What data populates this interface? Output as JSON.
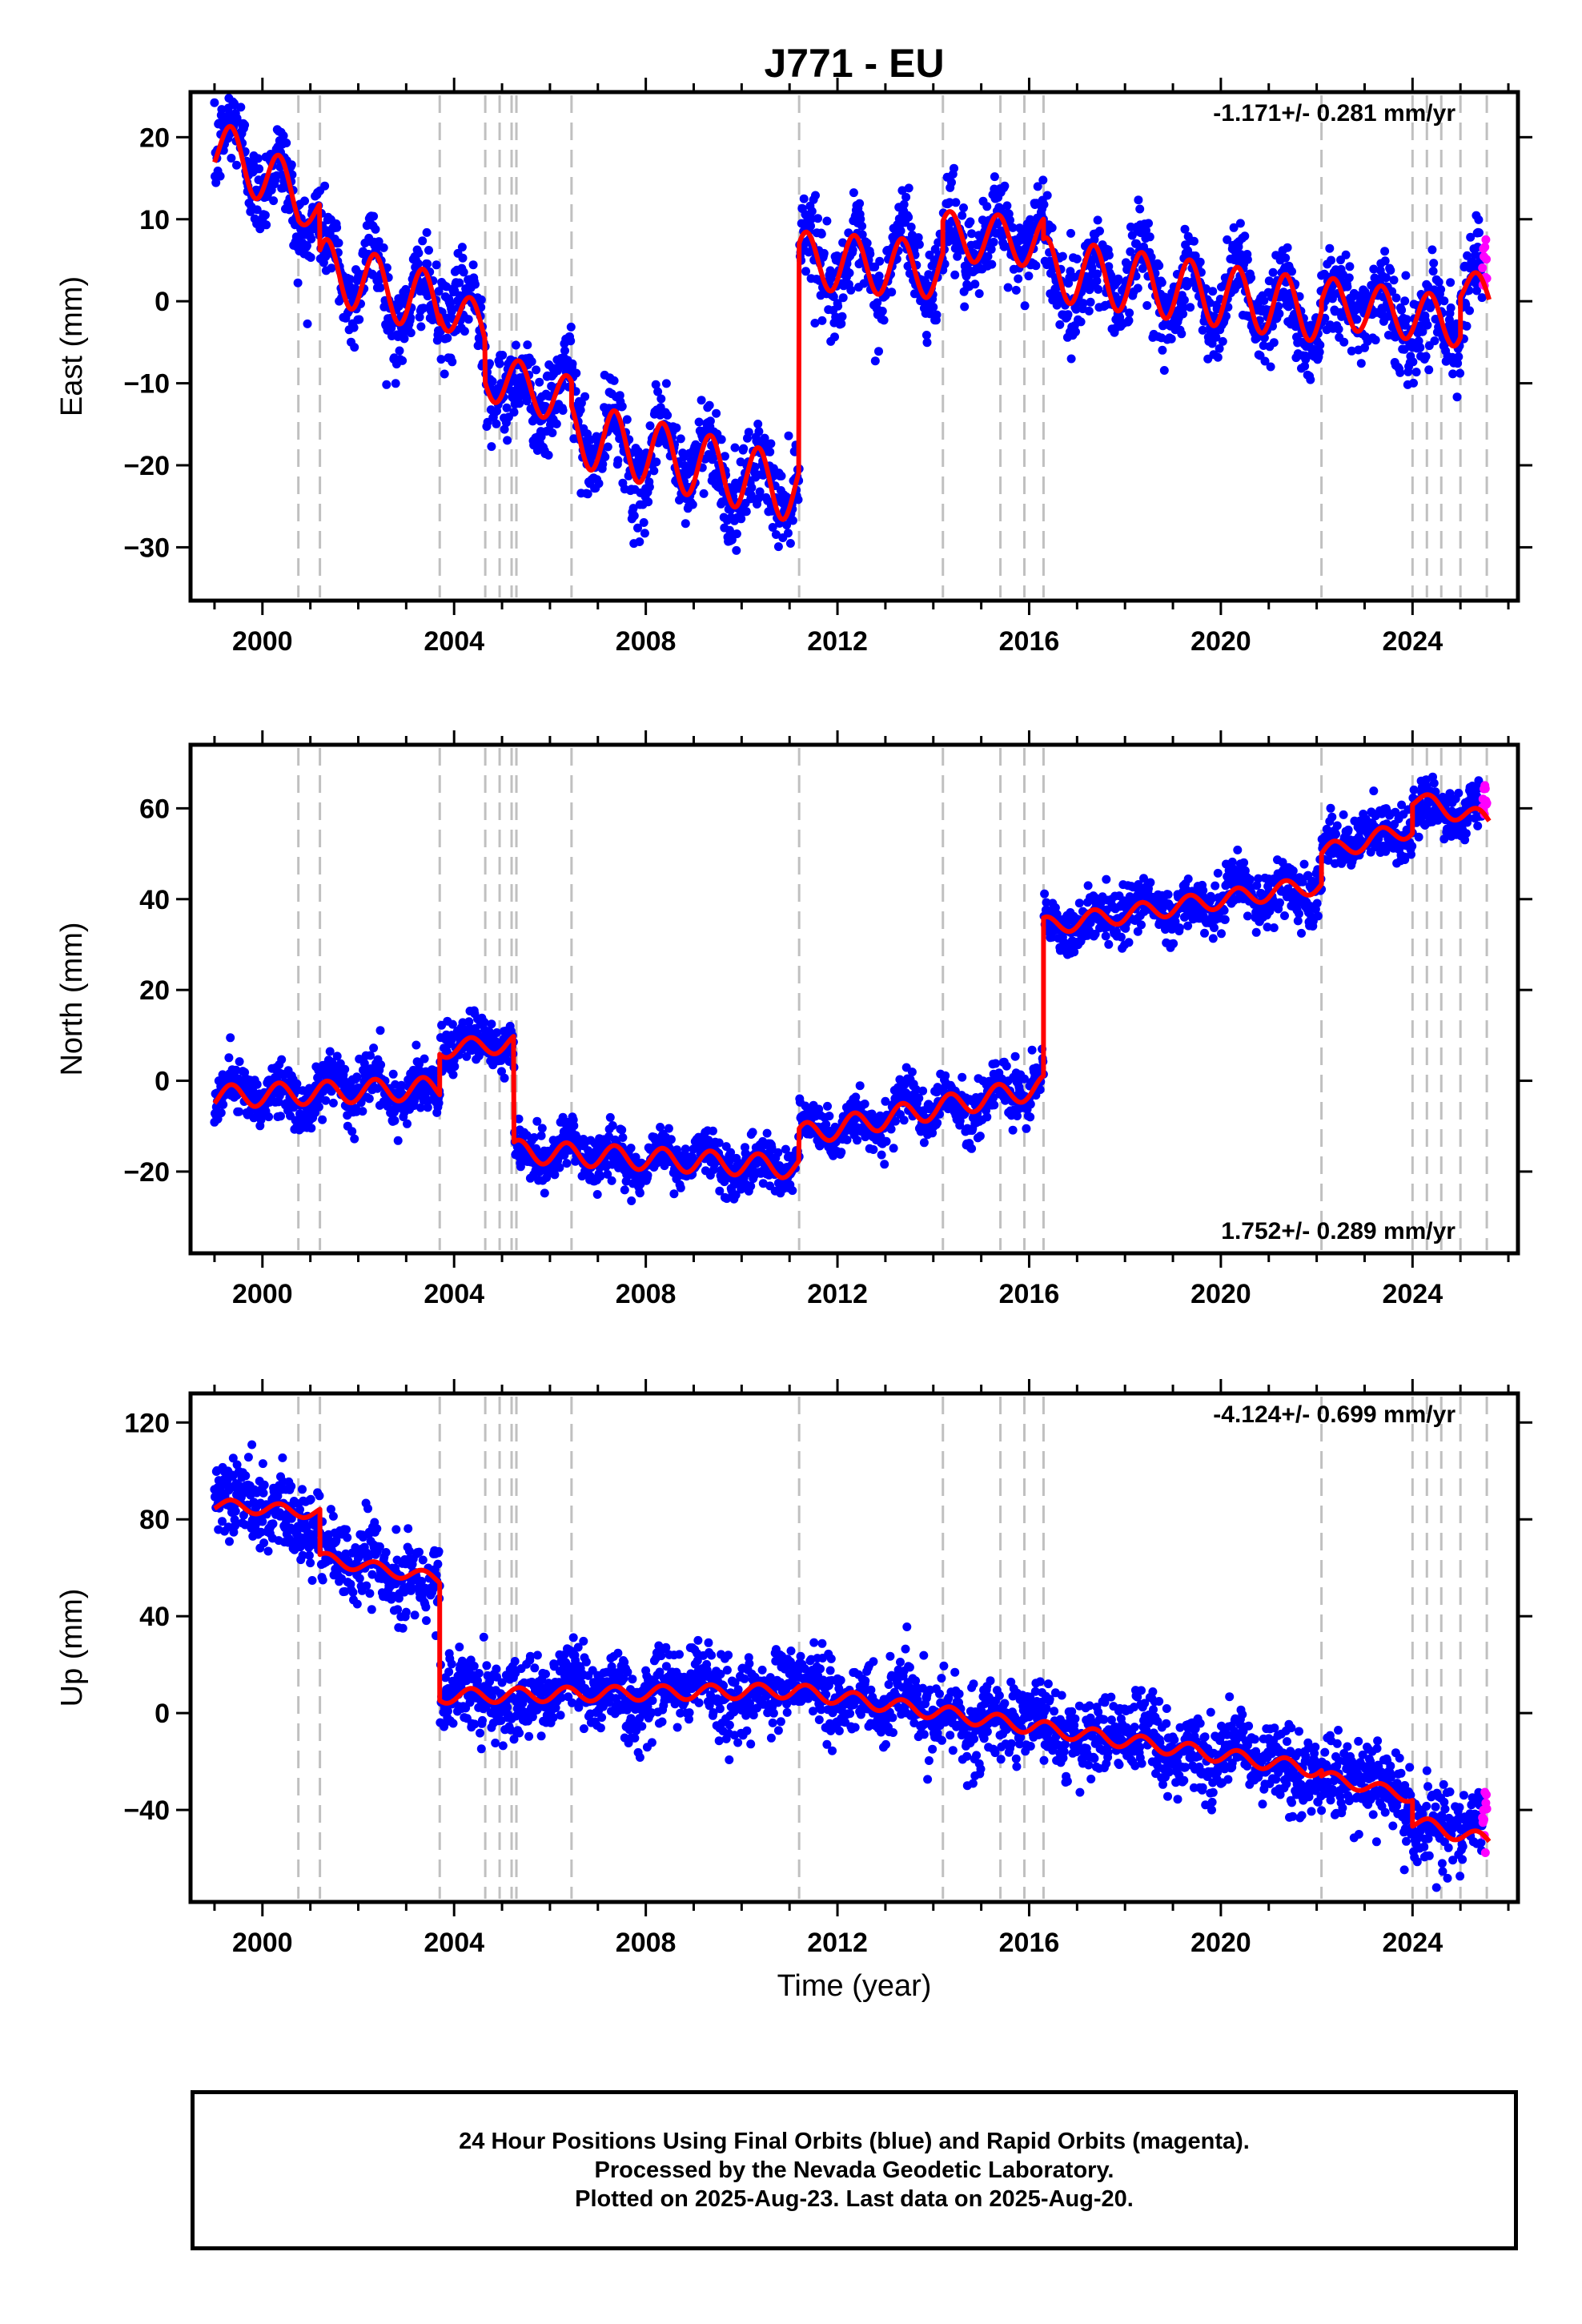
{
  "title": "J771 - EU",
  "xlabel": "Time (year)",
  "footer": {
    "line1": "24 Hour Positions Using Final Orbits (blue) and Rapid Orbits (magenta).",
    "line2": "Processed by the Nevada Geodetic Laboratory.",
    "line3": "Plotted on 2025-Aug-23. Last data on 2025-Aug-20."
  },
  "colors": {
    "final_orbits": "#0000ff",
    "rapid_orbits": "#ff00ff",
    "model_fit": "#ff0000",
    "event_lines": "#c0c0c0"
  },
  "chart_data": [
    {
      "type": "scatter",
      "ylabel": "East (mm)",
      "rate_text": "-1.171+/- 0.281 mm/yr",
      "rate_placement": "top-right",
      "xlim": [
        1998.5,
        2026.2
      ],
      "ylim": [
        -36.5,
        25.5
      ],
      "x_ticks": [
        2000,
        2004,
        2008,
        2012,
        2016,
        2020,
        2024
      ],
      "y_ticks": [
        20,
        10,
        0,
        -10,
        -20,
        -30
      ],
      "event_lines": [
        2000.75,
        2001.2,
        2003.7,
        2004.65,
        2004.95,
        2005.2,
        2005.3,
        2006.45,
        2011.2,
        2014.2,
        2015.4,
        2015.9,
        2016.3,
        2022.1,
        2024.0,
        2024.3,
        2024.6,
        2025.0,
        2025.55
      ],
      "model_segments": [
        {
          "start": 1999.0,
          "end": 2000.75,
          "a": 19.0,
          "b": -3.5,
          "amp": 3.5
        },
        {
          "start": 2000.75,
          "end": 2001.2,
          "a": 11.5,
          "b": -1.8,
          "amp": 2.0
        },
        {
          "start": 2001.2,
          "end": 2003.7,
          "a": 4.0,
          "b": -1.8,
          "amp": 3.8
        },
        {
          "start": 2003.7,
          "end": 2004.65,
          "a": 0.0,
          "b": -4.0,
          "amp": 3.0
        },
        {
          "start": 2004.65,
          "end": 2006.45,
          "a": -9.0,
          "b": -1.8,
          "amp": 3.0
        },
        {
          "start": 2006.45,
          "end": 2011.2,
          "a": -16.0,
          "b": -1.5,
          "amp": 4.0
        },
        {
          "start": 2011.2,
          "end": 2014.2,
          "a": 5.0,
          "b": -0.4,
          "amp": 3.5
        },
        {
          "start": 2014.2,
          "end": 2016.3,
          "a": 8.0,
          "b": -0.4,
          "amp": 3.0
        },
        {
          "start": 2016.3,
          "end": 2022.1,
          "a": 4.0,
          "b": -0.9,
          "amp": 3.8
        },
        {
          "start": 2022.1,
          "end": 2025.0,
          "a": 0.0,
          "b": -0.9,
          "amp": 3.0
        },
        {
          "start": 2025.0,
          "end": 2025.6,
          "a": 2.0,
          "b": -3.0,
          "amp": 2.5
        }
      ],
      "noise_mm": 2.6,
      "data_start": 1999.0,
      "data_end": 2025.55,
      "rapid_start": 2025.45
    },
    {
      "type": "scatter",
      "ylabel": "North (mm)",
      "rate_text": "1.752+/- 0.289 mm/yr",
      "rate_placement": "bottom-right",
      "xlim": [
        1998.5,
        2026.2
      ],
      "ylim": [
        -38,
        74
      ],
      "x_ticks": [
        2000,
        2004,
        2008,
        2012,
        2016,
        2020,
        2024
      ],
      "y_ticks": [
        60,
        40,
        20,
        0,
        -20
      ],
      "event_lines": [
        2000.75,
        2001.2,
        2003.7,
        2004.65,
        2004.95,
        2005.2,
        2005.3,
        2006.45,
        2011.2,
        2014.2,
        2015.4,
        2015.9,
        2016.3,
        2022.1,
        2024.0,
        2024.3,
        2024.6,
        2025.0,
        2025.55
      ],
      "model_segments": [
        {
          "start": 1999.0,
          "end": 2003.7,
          "a": -3.5,
          "b": 0.4,
          "amp": 2.5
        },
        {
          "start": 2003.7,
          "end": 2005.25,
          "a": 7.0,
          "b": 0.8,
          "amp": 2.0
        },
        {
          "start": 2005.25,
          "end": 2011.2,
          "a": -15.5,
          "b": -0.6,
          "amp": 2.5
        },
        {
          "start": 2011.2,
          "end": 2016.3,
          "a": -12.0,
          "b": 2.1,
          "amp": 2.5
        },
        {
          "start": 2016.3,
          "end": 2022.1,
          "a": 34.0,
          "b": 1.6,
          "amp": 2.0
        },
        {
          "start": 2022.1,
          "end": 2024.0,
          "a": 50.0,
          "b": 3.0,
          "amp": 2.0
        },
        {
          "start": 2024.0,
          "end": 2025.6,
          "a": 62.0,
          "b": -3.0,
          "amp": 2.0
        }
      ],
      "noise_mm": 2.8,
      "data_start": 1999.0,
      "data_end": 2025.55,
      "rapid_start": 2025.45
    },
    {
      "type": "scatter",
      "ylabel": "Up (mm)",
      "rate_text": "-4.124+/- 0.699 mm/yr",
      "rate_placement": "top-right",
      "xlim": [
        1998.5,
        2026.2
      ],
      "ylim": [
        -78,
        132
      ],
      "x_ticks": [
        2000,
        2004,
        2008,
        2012,
        2016,
        2020,
        2024
      ],
      "y_ticks": [
        120,
        80,
        40,
        0,
        -40
      ],
      "event_lines": [
        2000.75,
        2001.2,
        2003.7,
        2004.65,
        2004.95,
        2005.2,
        2005.3,
        2006.45,
        2011.2,
        2014.2,
        2015.4,
        2015.9,
        2016.3,
        2022.1,
        2024.0,
        2024.3,
        2024.6,
        2025.0,
        2025.55
      ],
      "model_segments": [
        {
          "start": 1999.0,
          "end": 2001.2,
          "a": 86.0,
          "b": -1.5,
          "amp": 2.5
        },
        {
          "start": 2001.2,
          "end": 2003.7,
          "a": 64.0,
          "b": -3.5,
          "amp": 2.5
        },
        {
          "start": 2003.7,
          "end": 2011.2,
          "a": 7.0,
          "b": 0.3,
          "amp": 3.0
        },
        {
          "start": 2011.2,
          "end": 2022.1,
          "a": 9.0,
          "b": -3.0,
          "amp": 3.0
        },
        {
          "start": 2022.1,
          "end": 2024.0,
          "a": -26.0,
          "b": -4.5,
          "amp": 2.5
        },
        {
          "start": 2024.0,
          "end": 2025.6,
          "a": -45.0,
          "b": -5.0,
          "amp": 3.0
        }
      ],
      "noise_mm": 8.0,
      "data_start": 1999.0,
      "data_end": 2025.55,
      "rapid_start": 2025.45
    }
  ]
}
